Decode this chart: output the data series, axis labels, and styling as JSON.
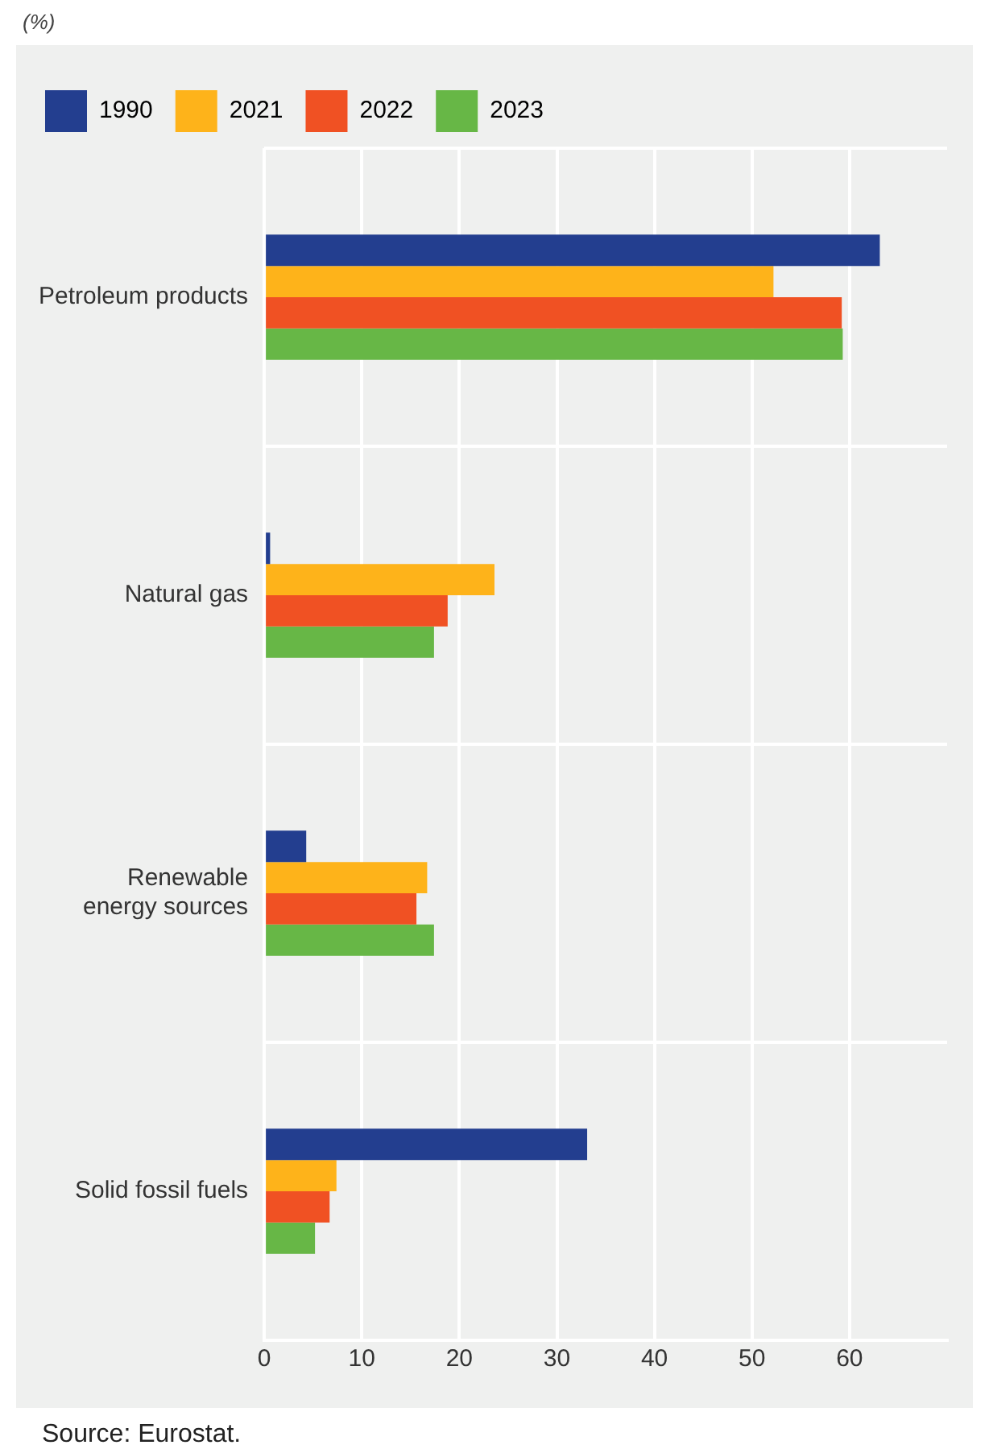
{
  "chart_data": {
    "type": "bar",
    "orientation": "horizontal",
    "categories": [
      "Petroleum products",
      "Natural gas",
      "Renewable\nenergy sources",
      "Solid fossil fuels"
    ],
    "series": [
      {
        "name": "1990",
        "color": "#233e8f",
        "values": [
          63.1,
          0.6,
          4.3,
          33.1
        ]
      },
      {
        "name": "2021",
        "color": "#feb31a",
        "values": [
          52.2,
          23.6,
          16.7,
          7.4
        ]
      },
      {
        "name": "2022",
        "color": "#f05123",
        "values": [
          59.2,
          18.8,
          15.6,
          6.7
        ]
      },
      {
        "name": "2023",
        "color": "#67b746",
        "values": [
          59.3,
          17.4,
          17.4,
          5.2
        ]
      }
    ],
    "xlim": [
      0,
      70
    ],
    "xticks": [
      0,
      10,
      20,
      30,
      40,
      50,
      60
    ],
    "grid": true,
    "legend": "top left",
    "annotations": [
      "(%)",
      "Source: Eurostat."
    ]
  }
}
